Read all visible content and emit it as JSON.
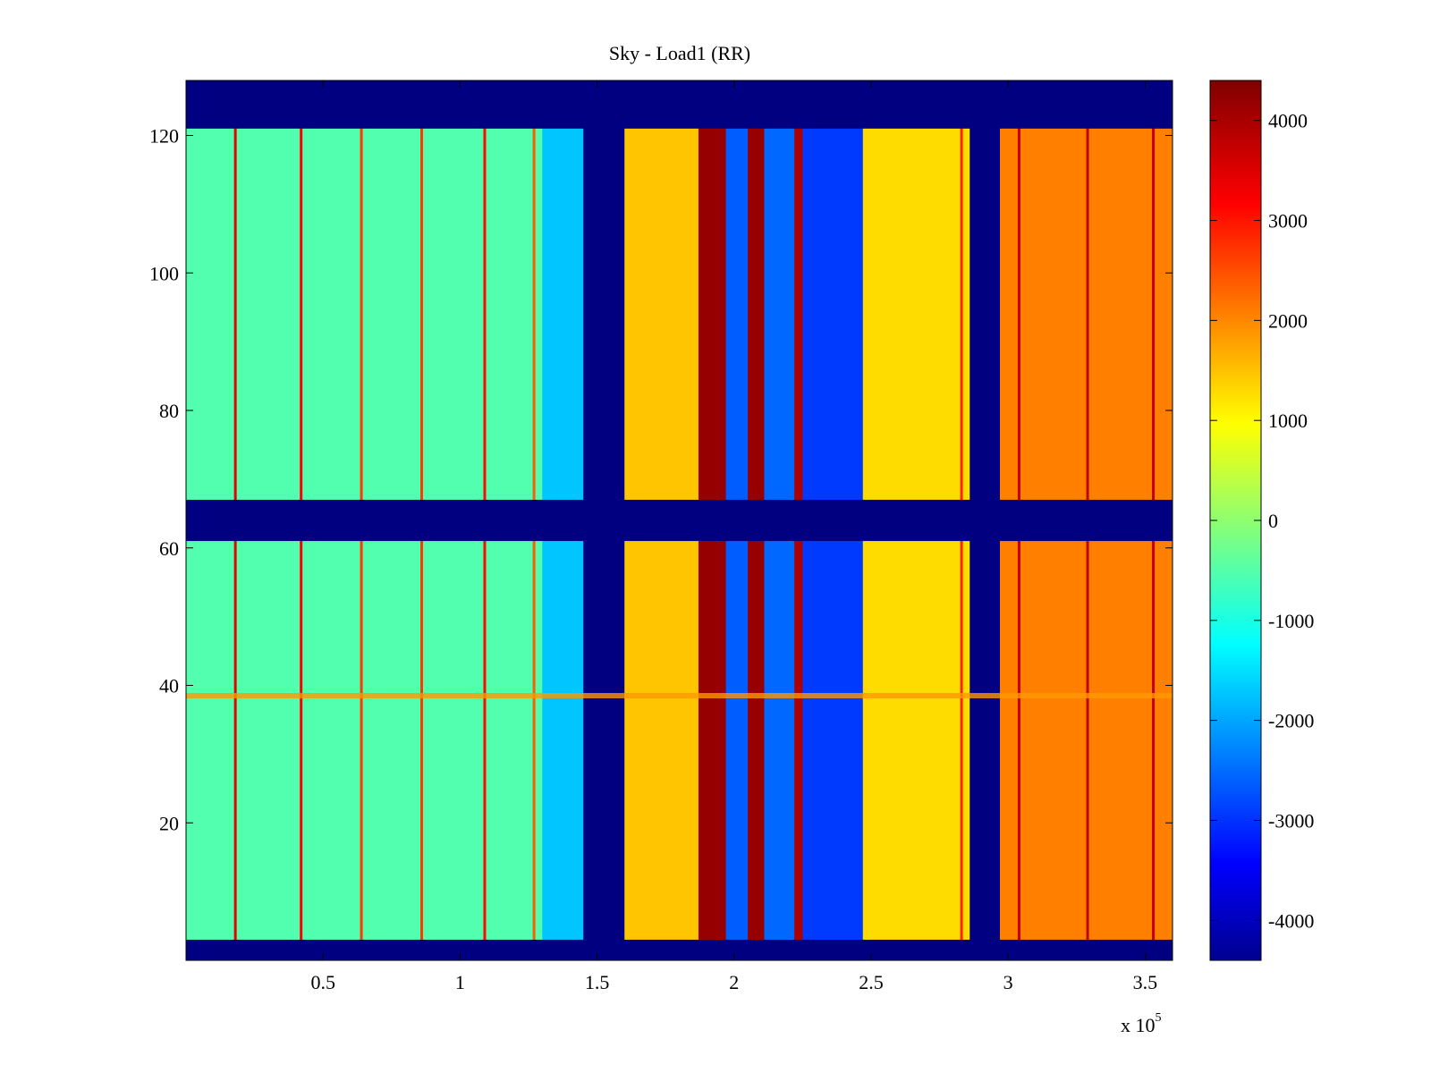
{
  "chart_data": {
    "type": "heatmap",
    "title": "Sky - Load1 (RR)",
    "xlabel": "",
    "ylabel": "",
    "x_range": [
      0,
      360000
    ],
    "y_range": [
      0,
      128
    ],
    "x_ticks": [
      50000,
      100000,
      150000,
      200000,
      250000,
      300000,
      350000
    ],
    "x_tick_labels": [
      "0.5",
      "1",
      "1.5",
      "2",
      "2.5",
      "3",
      "3.5"
    ],
    "x_multiplier_label": "x 10",
    "x_multiplier_exponent": "5",
    "y_ticks": [
      20,
      40,
      60,
      80,
      100,
      120
    ],
    "y_tick_labels": [
      "20",
      "40",
      "60",
      "80",
      "100",
      "120"
    ],
    "colorbar": {
      "colormap": "jet",
      "range": [
        -4400,
        4400
      ],
      "ticks": [
        -4000,
        -3000,
        -2000,
        -1000,
        0,
        1000,
        2000,
        3000,
        4000
      ],
      "tick_labels": [
        "-4000",
        "-3000",
        "-2000",
        "-1000",
        "0",
        "1000",
        "2000",
        "3000",
        "4000"
      ]
    },
    "masked_rows": [
      [
        0,
        3
      ],
      [
        61,
        67
      ],
      [
        121,
        128
      ]
    ],
    "masked_value": -4400,
    "column_regions": [
      {
        "x_start": 0,
        "x_end": 130000,
        "value": -400,
        "description": "green-cyan"
      },
      {
        "x_start": 130000,
        "x_end": 145000,
        "value": -1600,
        "description": "cyan"
      },
      {
        "x_start": 145000,
        "x_end": 160000,
        "value": -4400,
        "description": "blocked band"
      },
      {
        "x_start": 160000,
        "x_end": 187000,
        "value": 1600,
        "description": "yellow-orange"
      },
      {
        "x_start": 187000,
        "x_end": 197000,
        "value": 4200,
        "description": "dark red"
      },
      {
        "x_start": 197000,
        "x_end": 205000,
        "value": -2500,
        "description": "blue stripes"
      },
      {
        "x_start": 205000,
        "x_end": 211000,
        "value": 4200,
        "description": "dark red"
      },
      {
        "x_start": 211000,
        "x_end": 222000,
        "value": -2400,
        "description": "blue stripes"
      },
      {
        "x_start": 222000,
        "x_end": 225000,
        "value": 4000,
        "description": "red line"
      },
      {
        "x_start": 225000,
        "x_end": 247000,
        "value": -2800,
        "description": "blue"
      },
      {
        "x_start": 247000,
        "x_end": 286000,
        "value": 1400,
        "description": "yellow"
      },
      {
        "x_start": 286000,
        "x_end": 297000,
        "value": -4400,
        "description": "blocked band"
      },
      {
        "x_start": 297000,
        "x_end": 360000,
        "value": 2200,
        "description": "orange"
      }
    ],
    "vertical_lines": [
      {
        "x": 18000,
        "value": 3500
      },
      {
        "x": 42000,
        "value": 3300
      },
      {
        "x": 64000,
        "value": 2800
      },
      {
        "x": 86000,
        "value": 2800
      },
      {
        "x": 109000,
        "value": 3200
      },
      {
        "x": 127000,
        "value": 2500
      },
      {
        "x": 283000,
        "value": 3000
      },
      {
        "x": 304000,
        "value": 3800
      },
      {
        "x": 329000,
        "value": 3800
      },
      {
        "x": 353000,
        "value": 3800
      }
    ],
    "highlight_row": {
      "y": 38.5,
      "value": 2000
    }
  }
}
